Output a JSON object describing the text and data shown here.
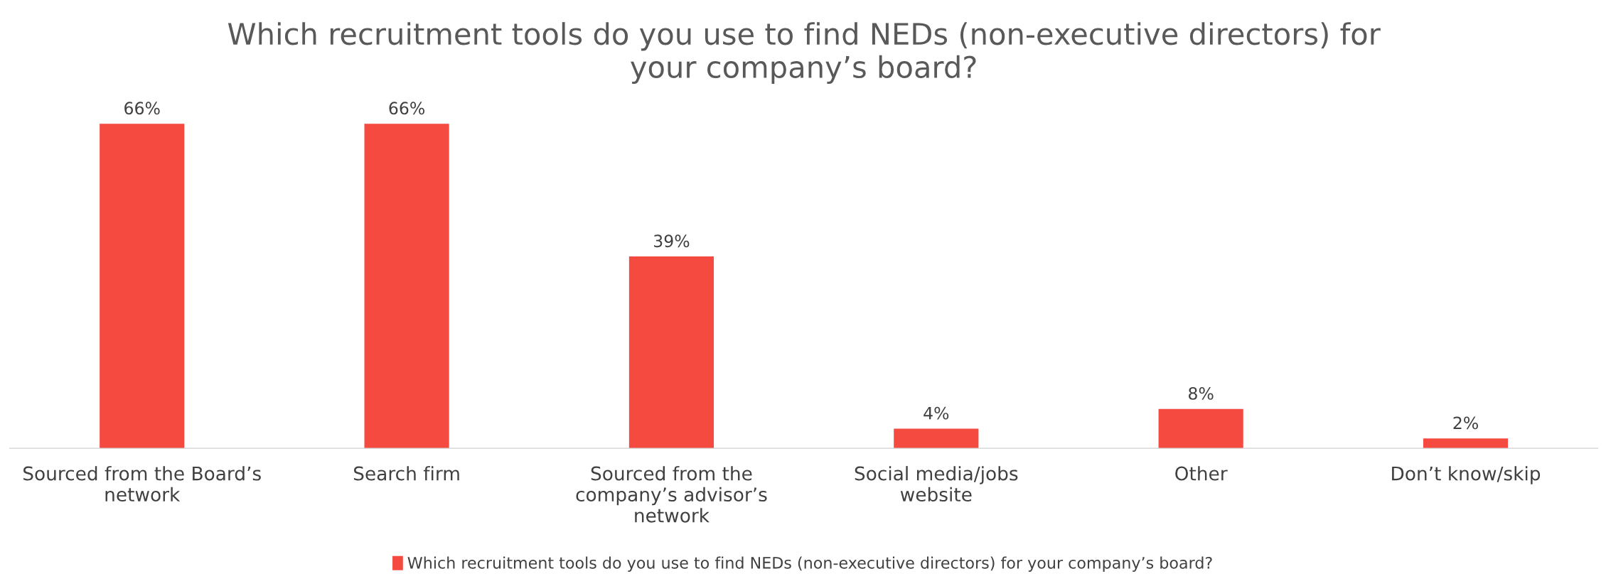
{
  "chart_data": {
    "type": "bar",
    "title": "Which recruitment tools do you use to find NEDs (non-executive directors) for\nyour company’s board?",
    "categories": [
      "Sourced from the Board’s\nnetwork",
      "Search firm",
      "Sourced from the\ncompany’s advisor’s\nnetwork",
      "Social media/jobs\nwebsite",
      "Other",
      "Don’t know/skip"
    ],
    "series": [
      {
        "name": "Which recruitment tools do you use to find NEDs (non-executive directors) for your company’s board?",
        "color": "#f44a40",
        "values": [
          66,
          66,
          39,
          4,
          8,
          2
        ],
        "value_labels": [
          "66%",
          "66%",
          "39%",
          "4%",
          "8%",
          "2%"
        ]
      }
    ],
    "grid": false,
    "legend": "bottom"
  }
}
